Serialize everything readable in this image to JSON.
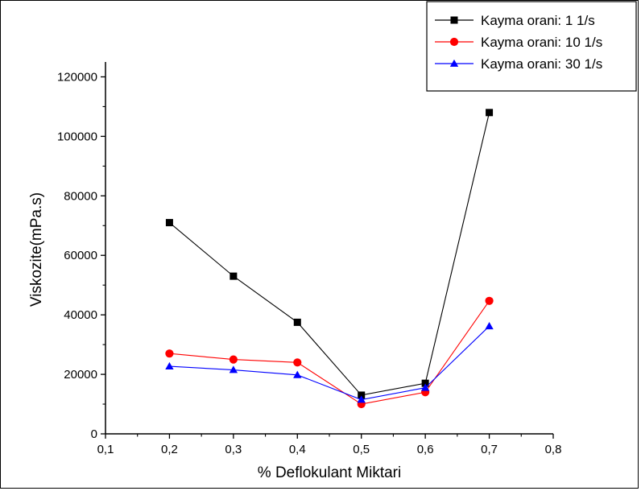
{
  "chart_data": {
    "type": "line",
    "title": "",
    "xlabel": "% Deflokulant Miktari",
    "ylabel": "Viskozite(mPa.s)",
    "xlim": [
      0.1,
      0.8
    ],
    "ylim": [
      0,
      125000
    ],
    "x_ticks": [
      0.1,
      0.2,
      0.3,
      0.4,
      0.5,
      0.6,
      0.7,
      0.8
    ],
    "x_tick_labels": [
      "0,1",
      "0,2",
      "0,3",
      "0,4",
      "0,5",
      "0,6",
      "0,7",
      "0,8"
    ],
    "y_ticks": [
      0,
      20000,
      40000,
      60000,
      80000,
      100000,
      120000
    ],
    "y_tick_labels": [
      "0",
      "20000",
      "40000",
      "60000",
      "80000",
      "100000",
      "120000"
    ],
    "x": [
      0.2,
      0.3,
      0.4,
      0.5,
      0.6,
      0.7
    ],
    "series": [
      {
        "name": "Kayma orani: 1 1/s",
        "color": "#000000",
        "marker": "square",
        "values": [
          71000,
          53000,
          37500,
          13000,
          17000,
          108000
        ]
      },
      {
        "name": "Kayma orani: 10 1/s",
        "color": "#ff0000",
        "marker": "circle",
        "values": [
          27000,
          25000,
          24000,
          10000,
          14000,
          44700
        ]
      },
      {
        "name": "Kayma orani: 30 1/s",
        "color": "#0000ff",
        "marker": "triangle",
        "values": [
          22700,
          21500,
          19800,
          11500,
          15500,
          36200
        ]
      }
    ],
    "grid": false,
    "legend_position": "top-right"
  }
}
